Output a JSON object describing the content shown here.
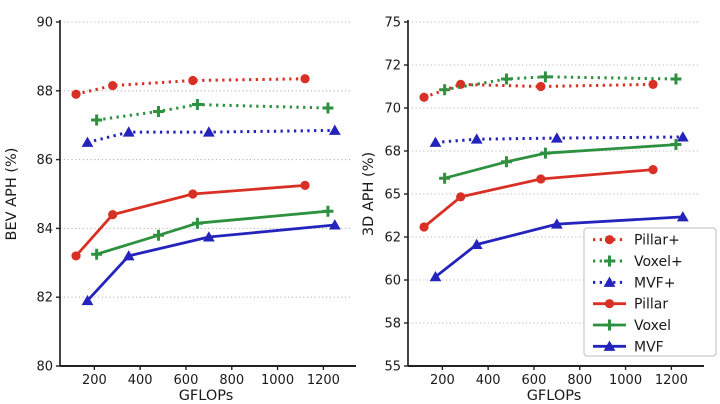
{
  "figure": {
    "background": "#ffffff",
    "xlabel": "GFLOPs",
    "left_ylabel": "BEV APH (%)",
    "right_ylabel": "3D APH (%)"
  },
  "colors": {
    "red": "#d93025",
    "green": "#2e9140",
    "blue": "#2424bd",
    "grid": "#b8b8b8",
    "axis": "#222222",
    "text": "#1a1a1a",
    "legend_border": "#cccccc",
    "legend_bg": "#ffffff"
  },
  "legend": {
    "position": "lower-right-of-right-chart",
    "items": [
      "Pillar+",
      "Voxel+",
      "MVF+",
      "Pillar",
      "Voxel",
      "MVF"
    ]
  },
  "chart_data": [
    {
      "type": "line",
      "title": "",
      "xlabel": "GFLOPs",
      "ylabel": "BEV APH (%)",
      "xlim": [
        50,
        1325
      ],
      "xticks": [
        200,
        400,
        600,
        800,
        1000,
        1200
      ],
      "yticks": [
        80,
        82,
        84,
        86,
        88,
        90
      ],
      "grid": "horizontal dotted",
      "legend": false,
      "series": [
        {
          "name": "Pillar+",
          "color": "red",
          "line": "dotted",
          "marker": "circle",
          "x": [
            120,
            280,
            630,
            1120
          ],
          "y": [
            87.9,
            88.15,
            88.3,
            88.35
          ]
        },
        {
          "name": "Voxel+",
          "color": "green",
          "line": "dotted",
          "marker": "plus",
          "x": [
            210,
            480,
            650,
            1220
          ],
          "y": [
            87.15,
            87.4,
            87.6,
            87.5
          ]
        },
        {
          "name": "MVF+",
          "color": "blue",
          "line": "dotted",
          "marker": "triangle",
          "x": [
            170,
            350,
            700,
            1250
          ],
          "y": [
            86.5,
            86.8,
            86.8,
            86.85
          ]
        },
        {
          "name": "Pillar",
          "color": "red",
          "line": "solid",
          "marker": "circle",
          "x": [
            120,
            280,
            630,
            1120
          ],
          "y": [
            83.2,
            84.4,
            85.0,
            85.25
          ]
        },
        {
          "name": "Voxel",
          "color": "green",
          "line": "solid",
          "marker": "plus",
          "x": [
            210,
            480,
            650,
            1220
          ],
          "y": [
            83.25,
            83.8,
            84.15,
            84.5
          ]
        },
        {
          "name": "MVF",
          "color": "blue",
          "line": "solid",
          "marker": "triangle",
          "x": [
            170,
            350,
            700,
            1250
          ],
          "y": [
            81.9,
            83.2,
            83.75,
            84.1
          ]
        }
      ]
    },
    {
      "type": "line",
      "title": "",
      "xlabel": "GFLOPs",
      "ylabel": "3D APH (%)",
      "xlim": [
        50,
        1325
      ],
      "xticks": [
        200,
        400,
        600,
        800,
        1000,
        1200
      ],
      "yticks": [
        55,
        58,
        60,
        62,
        65,
        68,
        70,
        72,
        75
      ],
      "ytick_spacing": "equal-pixel",
      "grid": "horizontal dotted",
      "legend": true,
      "series": [
        {
          "name": "Pillar+",
          "color": "red",
          "line": "dotted",
          "marker": "circle",
          "x": [
            120,
            280,
            630,
            1120
          ],
          "y": [
            70.5,
            71.1,
            71.0,
            71.1
          ]
        },
        {
          "name": "Voxel+",
          "color": "green",
          "line": "dotted",
          "marker": "plus",
          "x": [
            210,
            480,
            650,
            1220
          ],
          "y": [
            70.85,
            71.35,
            71.45,
            71.35
          ]
        },
        {
          "name": "MVF+",
          "color": "blue",
          "line": "dotted",
          "marker": "triangle",
          "x": [
            170,
            350,
            700,
            1250
          ],
          "y": [
            68.4,
            68.55,
            68.6,
            68.65
          ]
        },
        {
          "name": "Pillar",
          "color": "red",
          "line": "solid",
          "marker": "circle",
          "x": [
            120,
            280,
            630,
            1120
          ],
          "y": [
            62.7,
            64.8,
            66.05,
            66.7
          ]
        },
        {
          "name": "Voxel",
          "color": "green",
          "line": "solid",
          "marker": "plus",
          "x": [
            210,
            480,
            650,
            1220
          ],
          "y": [
            66.1,
            67.25,
            67.85,
            68.3
          ]
        },
        {
          "name": "MVF",
          "color": "blue",
          "line": "solid",
          "marker": "triangle",
          "x": [
            170,
            350,
            700,
            1250
          ],
          "y": [
            60.15,
            61.65,
            62.9,
            63.4
          ]
        }
      ]
    }
  ]
}
